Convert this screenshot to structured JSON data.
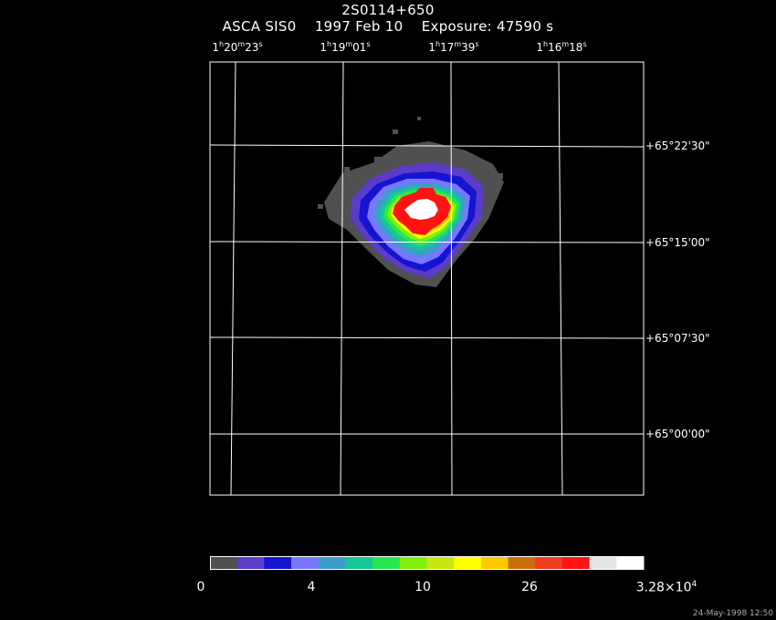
{
  "title": {
    "line1": "2S0114+650",
    "line2": "ASCA SIS0    1997 Feb 10    Exposure: 47590 s"
  },
  "ra_axis": {
    "labels": [
      {
        "h": "1",
        "m": "20",
        "s": "23"
      },
      {
        "h": "1",
        "m": "19",
        "s": "01"
      },
      {
        "h": "1",
        "m": "17",
        "s": "39"
      },
      {
        "h": "1",
        "m": "16",
        "s": "18"
      }
    ]
  },
  "dec_axis": {
    "labels": [
      "+65°22'30\"",
      "+65°15'00\"",
      "+65°07'30\"",
      "+65°00'00\""
    ]
  },
  "colorbar": {
    "colors": [
      "#505050",
      "#5a3cc8",
      "#1414d2",
      "#7878ff",
      "#3c9ec8",
      "#14c896",
      "#28e650",
      "#82f00a",
      "#c8e614",
      "#ffff00",
      "#ffc800",
      "#c86e0a",
      "#f03c1e",
      "#ff1414",
      "#e6e6e6",
      "#ffffff"
    ],
    "tick_labels": [
      "0",
      "4",
      "10",
      "26"
    ],
    "max_label_mantissa": "3.28×10",
    "max_label_exp": "4"
  },
  "footer": "24-May-1998 12:50"
}
